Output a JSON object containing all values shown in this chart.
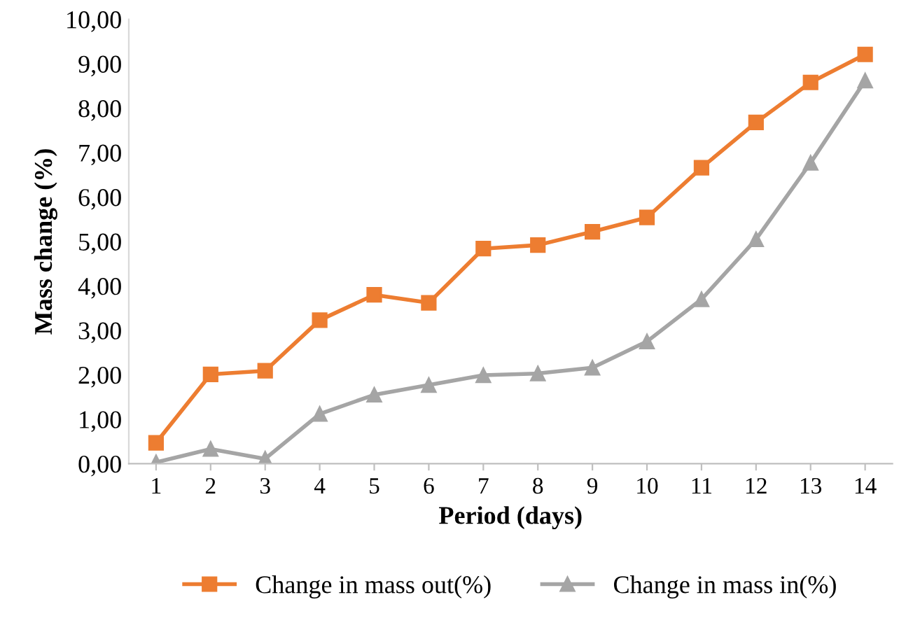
{
  "chart_data": {
    "type": "line",
    "xlabel": "Period (days)",
    "ylabel": "Mass change (%)",
    "categories": [
      "1",
      "2",
      "3",
      "4",
      "5",
      "6",
      "7",
      "8",
      "9",
      "10",
      "11",
      "12",
      "13",
      "14"
    ],
    "series": [
      {
        "name": "Change in mass out(%)",
        "color": "#ed7d31",
        "marker": "square",
        "values": [
          0.47,
          2.01,
          2.09,
          3.23,
          3.8,
          3.62,
          4.84,
          4.92,
          5.22,
          5.54,
          6.66,
          7.68,
          8.58,
          9.21
        ]
      },
      {
        "name": "Change in mass in(%)",
        "color": "#a5a5a5",
        "marker": "triangle",
        "values": [
          0.03,
          0.33,
          0.11,
          1.12,
          1.55,
          1.77,
          1.99,
          2.03,
          2.16,
          2.75,
          3.7,
          5.05,
          6.77,
          8.62
        ]
      }
    ],
    "ylim": [
      0,
      10
    ],
    "yticks": [
      {
        "value": 0,
        "label": "0,00"
      },
      {
        "value": 1,
        "label": "1,00"
      },
      {
        "value": 2,
        "label": "2,00"
      },
      {
        "value": 3,
        "label": "3,00"
      },
      {
        "value": 4,
        "label": "4,00"
      },
      {
        "value": 5,
        "label": "5,00"
      },
      {
        "value": 6,
        "label": "6,00"
      },
      {
        "value": 7,
        "label": "7,00"
      },
      {
        "value": 8,
        "label": "8,00"
      },
      {
        "value": 9,
        "label": "9,00"
      },
      {
        "value": 10,
        "label": "10,00"
      }
    ],
    "grid": false,
    "legend": "bottom",
    "line_style": "solid"
  }
}
